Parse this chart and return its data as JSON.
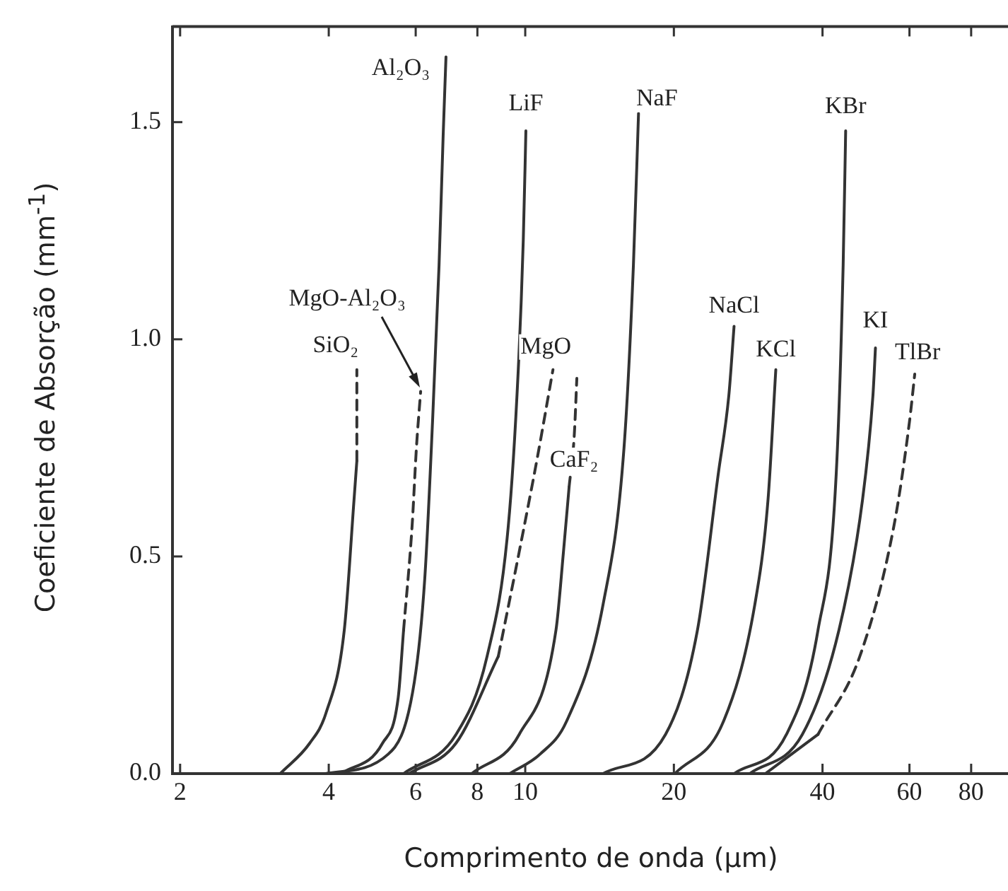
{
  "chart_data": {
    "type": "line",
    "xlabel": "Comprimento de onda (μm)",
    "ylabel": "Coeficiente de Absorção (mm$^{-1}$)",
    "log": "x",
    "xlim": [
      1.93,
      95
    ],
    "xticks": [
      2,
      4,
      6,
      8,
      10,
      20,
      40,
      60,
      80
    ],
    "ylim": [
      0,
      1.72
    ],
    "yticks": [
      {
        "value": 0,
        "label": "0.0"
      },
      0.5,
      {
        "value": 1,
        "label": "1.0"
      },
      1.5
    ],
    "grid": false,
    "marker": "none",
    "series": [
      {
        "color": "#333333",
        "line_style": "solid",
        "x": [
          3.19,
          3.66,
          3.95,
          4.3,
          4.5,
          4.56
        ],
        "values": [
          0,
          0.07,
          0.14,
          0.33,
          0.63,
          0.72
        ]
      },
      {
        "name": "SiO₂",
        "color": "#333333",
        "line_style": "dashed",
        "x": [
          4.56,
          4.56
        ],
        "values": [
          0.72,
          0.93
        ]
      },
      {
        "color": "#333333",
        "line_style": "solid",
        "x": [
          4.24,
          5.14,
          5.53,
          5.67
        ],
        "values": [
          0,
          0.07,
          0.175,
          0.33
        ]
      },
      {
        "name": "MgO-Al₂O₃",
        "color": "#333333",
        "line_style": "dashed",
        "x": [
          5.67,
          5.9,
          6.02,
          6.14
        ],
        "values": [
          0.33,
          0.57,
          0.75,
          0.88
        ]
      },
      {
        "name": "Al₂O₃",
        "color": "#333333",
        "line_style": "solid",
        "x": [
          3.94,
          5.28,
          5.96,
          6.26,
          6.49,
          6.69,
          6.82,
          6.91
        ],
        "values": [
          0,
          0.045,
          0.21,
          0.45,
          0.81,
          1.17,
          1.47,
          1.65
        ]
      },
      {
        "name": "LiF",
        "color": "#333333",
        "line_style": "solid",
        "x": [
          5.67,
          7.24,
          8.37,
          9.24,
          9.68,
          9.91,
          10.03
        ],
        "values": [
          0,
          0.09,
          0.27,
          0.57,
          0.93,
          1.23,
          1.48
        ]
      },
      {
        "color": "#333333",
        "line_style": "solid",
        "x": [
          5.82,
          7.24,
          8.82
        ],
        "values": [
          0,
          0.07,
          0.27
        ]
      },
      {
        "name": "MgO",
        "color": "#333333",
        "line_style": "dashed",
        "x": [
          8.82,
          9.72,
          10.59,
          11.38
        ],
        "values": [
          0.27,
          0.51,
          0.73,
          0.93
        ]
      },
      {
        "color": "#333333",
        "line_style": "solid",
        "x": [
          7.79,
          9.72,
          11.54,
          11.95,
          12.27
        ],
        "values": [
          0,
          0.09,
          0.33,
          0.51,
          0.66
        ]
      },
      {
        "name": "CaF₂",
        "color": "#333333",
        "line_style": "dashed",
        "x": [
          12.27,
          12.57,
          12.72
        ],
        "values": [
          0.66,
          0.78,
          0.91
        ]
      },
      {
        "name": "NaF",
        "color": "#333333",
        "line_style": "solid",
        "x": [
          9.3,
          10.72,
          12.12,
          14.38,
          15.85,
          16.56,
          16.96
        ],
        "values": [
          0,
          0.045,
          0.12,
          0.39,
          0.75,
          1.17,
          1.52
        ]
      },
      {
        "name": "NaCl",
        "color": "#333333",
        "line_style": "solid",
        "x": [
          14.38,
          19.23,
          22.32,
          24.6,
          25.84,
          26.48
        ],
        "values": [
          0,
          0.09,
          0.33,
          0.69,
          0.87,
          1.03
        ]
      },
      {
        "name": "KCl",
        "color": "#333333",
        "line_style": "solid",
        "x": [
          20.1,
          25.2,
          29.18,
          31.02,
          32.17
        ],
        "values": [
          0,
          0.12,
          0.39,
          0.63,
          0.93
        ]
      },
      {
        "name": "KBr",
        "color": "#333333",
        "line_style": "solid",
        "x": [
          26.48,
          33.8,
          39.16,
          42.64,
          44.04,
          44.56
        ],
        "values": [
          0,
          0.09,
          0.33,
          0.69,
          1.17,
          1.48
        ]
      },
      {
        "name": "KI",
        "color": "#333333",
        "line_style": "solid",
        "x": [
          28.48,
          36.4,
          43.18,
          48.2,
          50.6,
          51.2
        ],
        "values": [
          0,
          0.09,
          0.33,
          0.63,
          0.87,
          0.98
        ]
      },
      {
        "color": "#333333",
        "line_style": "solid",
        "x": [
          30.64,
          39.16
        ],
        "values": [
          0,
          0.09
        ]
      },
      {
        "name": "TlBr",
        "color": "#333333",
        "line_style": "dashed",
        "x": [
          39.16,
          47.6,
          55.8,
          60.0,
          61.5
        ],
        "values": [
          0.09,
          0.27,
          0.57,
          0.81,
          0.92
        ]
      }
    ]
  }
}
